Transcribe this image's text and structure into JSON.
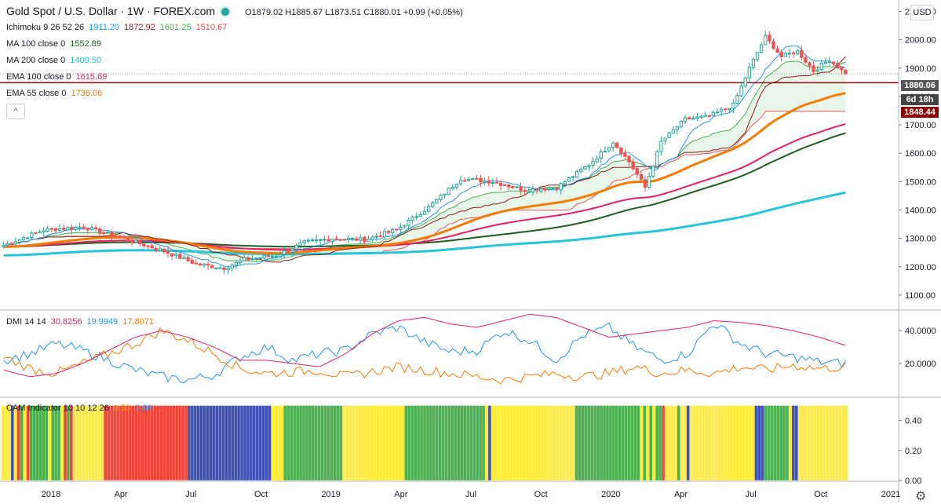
{
  "header": {
    "symbol": "Gold Spot / U.S. Dollar · 1W · FOREX.com",
    "ohlc": "O1879.02  H1885.67  L1873.51  C1880.01  +0.99 (+0.05%)"
  },
  "legends": {
    "ichimoku": {
      "label": "Ichimoku 9 26 52 26",
      "v1": "1911.20",
      "v2": "1872.92",
      "v3": "1601.25",
      "v4": "1510.67"
    },
    "ma100": {
      "label": "MA 100 close 0",
      "value": "1552.89"
    },
    "ma200": {
      "label": "MA 200 close 0",
      "value": "1409.50"
    },
    "ema100": {
      "label": "EMA 100 close 0",
      "value": "1615.69"
    },
    "ema55": {
      "label": "EMA 55 close 0",
      "value": "1736.06"
    },
    "dmi": {
      "label": "DMI 14 14",
      "v1": "30.8256",
      "v2": "19.9949",
      "v3": "17.8071"
    },
    "cam": {
      "label": "CAM Indicator 10 10 12 26",
      "v1": "0.50",
      "v2": "0.00"
    }
  },
  "buttons": {
    "usd": "USD",
    "collapse": "^",
    "settings": "⚙"
  },
  "price_tags": {
    "last": "1880.06",
    "countdown": "6d 18h",
    "level": "1848.44"
  },
  "colors": {
    "up": "#26a69a",
    "down": "#ef5350",
    "tenkan": "#2196f3",
    "kijun": "#8b1a1a",
    "senkou_a": "#4caf50",
    "senkou_b": "#ef5350",
    "ma100": "#1b5e20",
    "ma200": "#26c6da",
    "ema100": "#e91e63",
    "ema55": "#f57c00",
    "purple": "#673ab7",
    "dmi_plus": "#2196f3",
    "dmi_minus": "#f57c00",
    "adx": "#e91e63",
    "cam_green": "#4caf50",
    "cam_red": "#f44336",
    "cam_blue": "#3f51b5",
    "cam_yellow": "#ffeb3b",
    "hline": "#8b0000"
  },
  "chart_data": [
    {
      "type": "candlestick",
      "title": "Gold Spot / U.S. Dollar · 1W · FOREX.com",
      "ylim": [
        1050,
        2140
      ],
      "yticks": [
        1100,
        1200,
        1300,
        1400,
        1500,
        1600,
        1700,
        1800,
        1900,
        2000,
        2100
      ],
      "xlabels": [
        "2018",
        "Apr",
        "Jul",
        "Oct",
        "2019",
        "Apr",
        "Jul",
        "Oct",
        "2020",
        "Apr",
        "Jul",
        "Oct",
        "2021"
      ],
      "close_anchor": [
        [
          0,
          1275
        ],
        [
          10,
          1330
        ],
        [
          20,
          1340
        ],
        [
          30,
          1300
        ],
        [
          40,
          1255
        ],
        [
          48,
          1210
        ],
        [
          55,
          1195
        ],
        [
          60,
          1225
        ],
        [
          68,
          1240
        ],
        [
          75,
          1285
        ],
        [
          82,
          1300
        ],
        [
          90,
          1295
        ],
        [
          98,
          1330
        ],
        [
          106,
          1410
        ],
        [
          114,
          1510
        ],
        [
          122,
          1500
        ],
        [
          130,
          1470
        ],
        [
          138,
          1480
        ],
        [
          146,
          1560
        ],
        [
          152,
          1640
        ],
        [
          156,
          1570
        ],
        [
          160,
          1480
        ],
        [
          164,
          1640
        ],
        [
          170,
          1720
        ],
        [
          176,
          1730
        ],
        [
          182,
          1770
        ],
        [
          186,
          1900
        ],
        [
          190,
          2010
        ],
        [
          194,
          1940
        ],
        [
          198,
          1960
        ],
        [
          202,
          1890
        ],
        [
          206,
          1930
        ],
        [
          210,
          1880
        ]
      ],
      "horizontal_line": 1848.44,
      "last": 1880.06
    },
    {
      "type": "line",
      "title": "DMI 14 14",
      "ylim": [
        0,
        52
      ],
      "yticks": [
        20,
        40
      ],
      "ytick_labels": [
        "20.0000",
        "40.0000"
      ],
      "series": [
        {
          "name": "+DI",
          "values": [
            22,
            26,
            32,
            28,
            22,
            16,
            12,
            10,
            13,
            24,
            30,
            22,
            26,
            28,
            38,
            42,
            33,
            27,
            28,
            40,
            34,
            22,
            37,
            42,
            30,
            22,
            26,
            45,
            32,
            26,
            24,
            21,
            20
          ]
        },
        {
          "name": "-DI",
          "values": [
            24,
            17,
            14,
            20,
            26,
            32,
            40,
            34,
            26,
            17,
            14,
            15,
            16,
            12,
            15,
            18,
            16,
            14,
            12,
            10,
            12,
            14,
            12,
            14,
            18,
            14,
            16,
            14,
            18,
            16,
            19,
            17,
            18
          ]
        },
        {
          "name": "ADX",
          "values": [
            16,
            12,
            14,
            20,
            28,
            36,
            40,
            36,
            30,
            22,
            22,
            20,
            18,
            26,
            38,
            46,
            48,
            44,
            42,
            46,
            50,
            48,
            42,
            36,
            38,
            40,
            42,
            46,
            45,
            43,
            40,
            36,
            31
          ]
        }
      ]
    },
    {
      "type": "bar",
      "title": "CAM Indicator 10 10 12 26",
      "ylim": [
        0,
        0.55
      ],
      "yticks": [
        0,
        0.2,
        0.4
      ],
      "ytick_labels": [
        "0.00",
        "0.20",
        "0.40"
      ],
      "bar_value": 0.5,
      "states": "YYYBYRGYRGGGGGGYGGGYRGRYYYYYYYYYYRRRRRRRRRRRRRRRRRRRRRRRRRRRBBBBBBBBBBBBBBBBBBBBBBBBBBBYYYYGGGGGGGGGGGGGGGGGGGYYYYYYYYYYYYYYYYYYYYGGGGGGGGGGGGGGGGGGGGGGGGGGYBYYYYYYYYYYYYYYYYYYYYYYYYYYYGGGGGGGGGGGGGGGGGGGGGYGYGYGGRYYYYGYYBYYYYYYYYYYYYYYYYYYYYYBBBGGGGGGGGYBBYYYYYYYYYYYYYYYY"
    }
  ]
}
